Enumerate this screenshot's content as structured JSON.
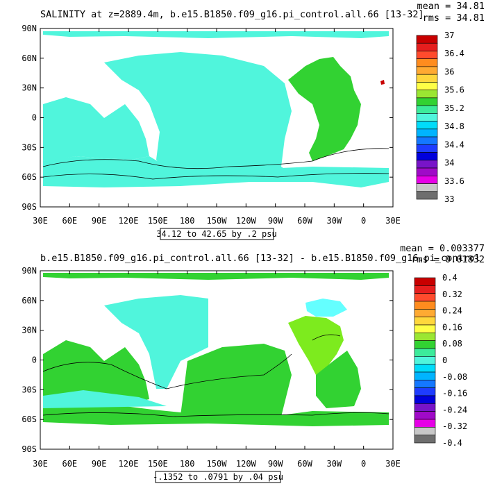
{
  "panels": [
    {
      "title": "SALINITY at z=2889.4m, b.e15.B1850.f09_g16.pi_control.all.66 [13-32]",
      "mean_label": "mean = 34.81",
      "rms_label": "rms = 34.81",
      "range_label": "34.12 to 42.65 by .2 psu",
      "y_ticks": [
        "90N",
        "60N",
        "30N",
        "0",
        "30S",
        "60S",
        "90S"
      ],
      "x_ticks": [
        "30E",
        "60E",
        "90E",
        "120E",
        "150E",
        "180",
        "150W",
        "120W",
        "90W",
        "60W",
        "30W",
        "0",
        "30E"
      ],
      "colorbar": {
        "labels": [
          "37",
          "36.4",
          "36",
          "35.6",
          "35.2",
          "34.8",
          "34.4",
          "34",
          "33.6",
          "33"
        ],
        "colors": [
          "#c80000",
          "#e61e1e",
          "#ff4b2d",
          "#ff8c1e",
          "#ffaa32",
          "#ffd73c",
          "#ffff46",
          "#9be632",
          "#32d232",
          "#3ceb9b",
          "#50f5dc",
          "#00dcfa",
          "#00b4ff",
          "#1478ff",
          "#1e3cff",
          "#0000dc",
          "#7814c8",
          "#a00ac8",
          "#e600e6",
          "#c8c8c8",
          "#6e6e6e"
        ]
      }
    },
    {
      "title": "b.e15.B1850.f09_g16.pi_control.all.66 [13-32] - b.e15.B1850.f09_g16.pi_control",
      "mean_label": "mean = 0.003377",
      "rms_label": "rms = 0.01832",
      "range_label": "-.1352 to .0791 by .04 psu",
      "y_ticks": [
        "90N",
        "60N",
        "30N",
        "0",
        "30S",
        "60S",
        "90S"
      ],
      "x_ticks": [
        "30E",
        "60E",
        "90E",
        "120E",
        "150E",
        "180",
        "150W",
        "120W",
        "90W",
        "60W",
        "30W",
        "0",
        "30E"
      ],
      "colorbar": {
        "labels": [
          "0.4",
          "0.32",
          "0.24",
          "0.16",
          "0.08",
          "0",
          "-0.08",
          "-0.16",
          "-0.24",
          "-0.32",
          "-0.4"
        ],
        "colors": [
          "#c80000",
          "#e61e1e",
          "#ff4b2d",
          "#ff8c1e",
          "#ffaa32",
          "#ffd73c",
          "#ffff46",
          "#9be632",
          "#32d232",
          "#3ceb9b",
          "#50f5dc",
          "#00dcfa",
          "#00b4ff",
          "#1478ff",
          "#1e3cff",
          "#0000dc",
          "#7814c8",
          "#a00ac8",
          "#e600e6",
          "#c8c8c8",
          "#6e6e6e"
        ]
      }
    }
  ],
  "colors": {
    "cyan": "#50f5dc",
    "green": "#32d232",
    "lime": "#7deb1e",
    "ltcyan": "#64ffff",
    "dkred": "#c80000",
    "blue": "#1478ff"
  }
}
